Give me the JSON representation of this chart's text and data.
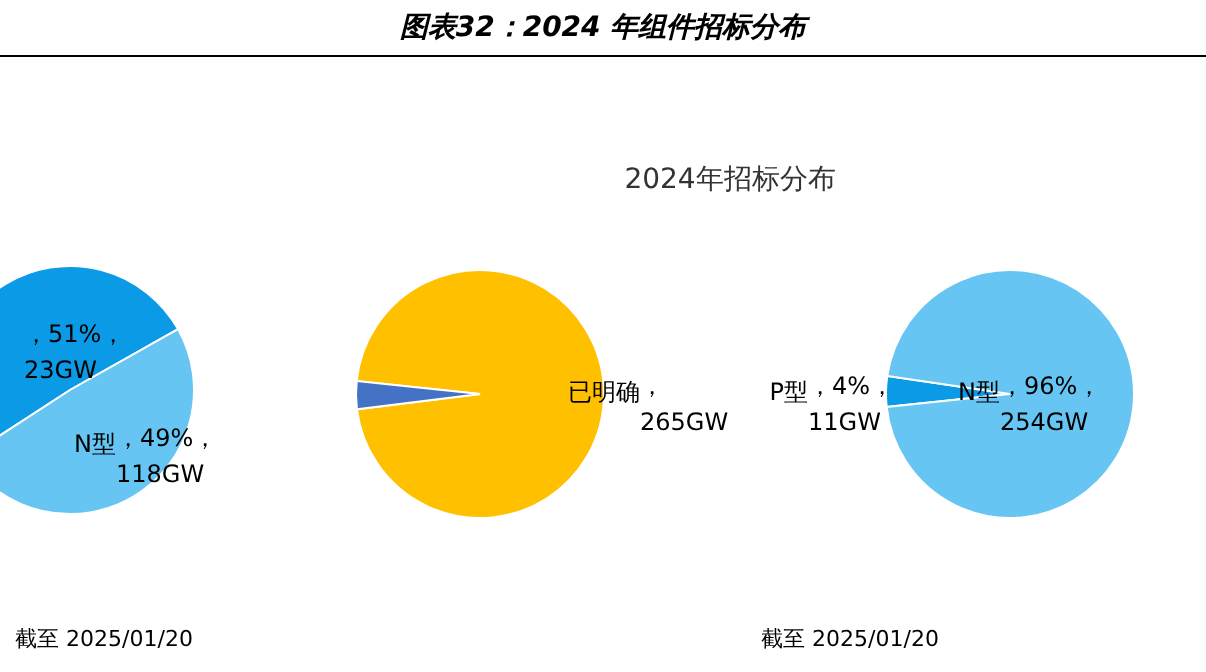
{
  "chart_data": [
    {
      "type": "pie",
      "title": "图表32：2024 年组件招标分布",
      "categories": [
        null,
        "N型"
      ],
      "values": [
        51,
        49
      ],
      "colors": [
        "#0a9ae6",
        "#66c5f2"
      ],
      "value_labels": [
        "，51%，\n23GW",
        "，49%，\n118GW"
      ],
      "annotations": [
        "截至 2025/01/20"
      ]
    },
    {
      "type": "pie",
      "title": "2024年招标分布",
      "categories": [
        "已明确",
        null
      ],
      "values": [
        265,
        10
      ],
      "colors": [
        "#ffc000",
        "#4472c4"
      ],
      "value_labels": [
        "，\n265GW",
        null
      ]
    },
    {
      "type": "pie",
      "categories": [
        "P型",
        "N型"
      ],
      "values": [
        4,
        96
      ],
      "colors": [
        "#0a9ae6",
        "#66c5f2"
      ],
      "value_labels": [
        "，4%，\n11GW",
        "，96%，\n254GW"
      ],
      "annotations": [
        "截至 2025/01/20"
      ]
    }
  ]
}
